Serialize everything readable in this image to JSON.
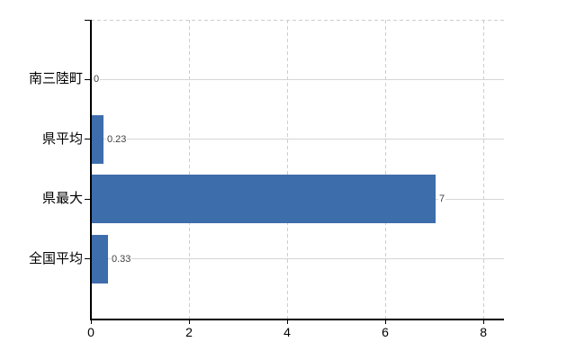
{
  "chart_data": {
    "type": "bar",
    "orientation": "horizontal",
    "title": "",
    "xlabel": "",
    "ylabel": "",
    "categories": [
      "南三陸町",
      "県平均",
      "県最大",
      "全国平均"
    ],
    "values": [
      0,
      0.23,
      7,
      0.33
    ],
    "value_labels": [
      "0",
      "0.23",
      "7",
      "0.33"
    ],
    "x_tick_labels": [
      "0",
      "2",
      "4",
      "6",
      "8"
    ],
    "x_tick_values": [
      0,
      2,
      4,
      6,
      8
    ],
    "xlim": [
      0,
      8.42
    ],
    "grid": true,
    "legend_position": "none",
    "bar_color": "#3e6dac",
    "grid_color": "#d2d6d2",
    "dashed_grid_color": "#cdcdd2",
    "axis_color": "#000000",
    "value_label_color": "#3f3f3f"
  }
}
